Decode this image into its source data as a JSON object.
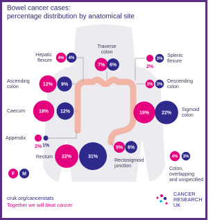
{
  "header": {
    "title": [
      "Bowel cancer cases:",
      "percentage distribution by anatomical site"
    ]
  },
  "legend": {
    "female": "F",
    "male": "M"
  },
  "colors": {
    "female": "#e5007e",
    "male": "#2e2a8c"
  },
  "sites": [
    {
      "name": [
        "Hepatic",
        "flexure"
      ],
      "values": {
        "female": 4,
        "male": 4
      },
      "value_labels": {
        "female": "4%",
        "male": "4%"
      }
    },
    {
      "name": [
        "Traverse",
        "colon"
      ],
      "values": {
        "female": 7,
        "male": 6
      },
      "value_labels": {
        "female": "7%",
        "male": "6%"
      }
    },
    {
      "name": [
        "Splenic",
        "flexure"
      ],
      "values": {
        "female": 2,
        "male": 3
      },
      "value_labels": {
        "female": "2%",
        "male": "3%"
      }
    },
    {
      "name": [
        "Ascending",
        "colon"
      ],
      "values": {
        "female": 12,
        "male": 9
      },
      "value_labels": {
        "female": "12%",
        "male": "9%"
      }
    },
    {
      "name": [
        "Descending",
        "colon"
      ],
      "values": {
        "female": 3,
        "male": 3
      },
      "value_labels": {
        "female": "3%",
        "male": "3%"
      }
    },
    {
      "name": [
        "Caecum"
      ],
      "values": {
        "female": 18,
        "male": 12
      },
      "value_labels": {
        "female": "18%",
        "male": "12%"
      }
    },
    {
      "name": [
        "Sigmoid",
        "colon"
      ],
      "values": {
        "female": 19,
        "male": 22
      },
      "value_labels": {
        "female": "19%",
        "male": "22%"
      }
    },
    {
      "name": [
        "Appendix"
      ],
      "values": {
        "female": 2,
        "male": 1
      },
      "value_labels": {
        "female": "2%",
        "male": "1%"
      }
    },
    {
      "name": [
        "Rectum"
      ],
      "values": {
        "female": 22,
        "male": 31
      },
      "value_labels": {
        "female": "22%",
        "male": "31%"
      }
    },
    {
      "name": [
        "Rectosigmoid",
        "junction"
      ],
      "values": {
        "female": 5,
        "male": 6
      },
      "value_labels": {
        "female": "5%",
        "male": "6%"
      }
    },
    {
      "name": [
        "Colon,",
        "overlapping",
        "and unspecified"
      ],
      "values": {
        "female": 4,
        "male": 3
      },
      "value_labels": {
        "female": "4%",
        "male": "3%"
      }
    }
  ],
  "footer": {
    "link": "cruk.org/cancerstats",
    "tagline": "Together we will beat cancer",
    "logo": [
      "CANCER",
      "RESEARCH",
      "UK"
    ]
  }
}
